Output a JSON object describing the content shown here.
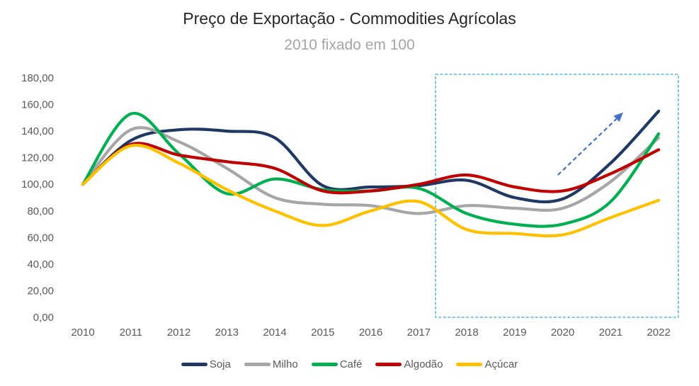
{
  "chart_data": {
    "type": "line",
    "title": "Preço de Exportação - Commodities Agrícolas",
    "subtitle": "2010 fixado em 100",
    "x": [
      2010,
      2011,
      2012,
      2013,
      2014,
      2015,
      2016,
      2017,
      2018,
      2019,
      2020,
      2021,
      2022
    ],
    "x_tick_labels": [
      "2010",
      "2011",
      "2012",
      "2013",
      "2014",
      "2015",
      "2016",
      "2017",
      "2018",
      "2019",
      "2020",
      "2021",
      "2022"
    ],
    "y_ticks": [
      {
        "label": "180,00",
        "value": 180
      },
      {
        "label": "160,00",
        "value": 160
      },
      {
        "label": "140,00",
        "value": 140
      },
      {
        "label": "120,00",
        "value": 120
      },
      {
        "label": "100,00",
        "value": 100
      },
      {
        "label": "80,00",
        "value": 80
      },
      {
        "label": "60,00",
        "value": 60
      },
      {
        "label": "40,00",
        "value": 40
      },
      {
        "label": "20,00",
        "value": 20
      },
      {
        "label": "0,00",
        "value": 0
      }
    ],
    "ylim": [
      0,
      180
    ],
    "grid": false,
    "legend_position": "bottom",
    "series": [
      {
        "id": "soja",
        "name": "Soja",
        "color": "#1F3864",
        "values": [
          100,
          133,
          141,
          140,
          135,
          99,
          98,
          99,
          103,
          90,
          89,
          116,
          155
        ]
      },
      {
        "id": "milho",
        "name": "Milho",
        "color": "#A6A6A6",
        "values": [
          100,
          141,
          132,
          112,
          90,
          85,
          84,
          78,
          84,
          82,
          82,
          102,
          135
        ]
      },
      {
        "id": "cafe",
        "name": "Café",
        "color": "#00B050",
        "values": [
          100,
          153,
          123,
          93,
          104,
          96,
          95,
          97,
          78,
          70,
          70,
          87,
          138
        ]
      },
      {
        "id": "algodao",
        "name": "Algodão",
        "color": "#C00000",
        "values": [
          100,
          130,
          122,
          117,
          112,
          95,
          95,
          100,
          107,
          98,
          95,
          108,
          126
        ]
      },
      {
        "id": "acucar",
        "name": "Açúcar",
        "color": "#FFC000",
        "values": [
          100,
          129,
          116,
          96,
          80,
          69,
          80,
          87,
          66,
          63,
          62,
          75,
          88
        ]
      }
    ],
    "annotations": {
      "highlight_box": {
        "x_from": 2017.35,
        "x_to": 2022.41,
        "y_from": 0,
        "y_to": 182.7,
        "color": "#29A9E1",
        "style": "dashed"
      },
      "trend_arrow": {
        "from_x": 2019.9,
        "from_y": 107,
        "to_x": 2021.26,
        "to_y": 154,
        "color": "#4472C4",
        "style": "dashed"
      }
    }
  }
}
